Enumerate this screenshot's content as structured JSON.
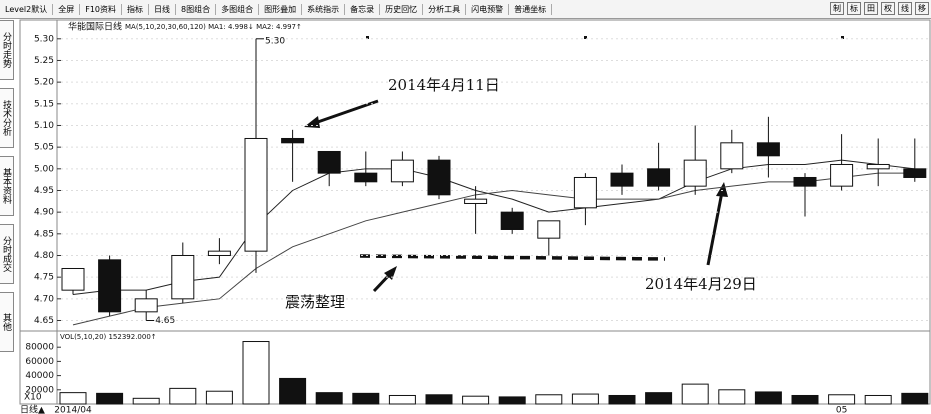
{
  "toolbar": {
    "items": [
      "Level2默认",
      "全屏",
      "F10资料",
      "指标",
      "日线",
      "8图组合",
      "多图组合",
      "图形叠加",
      "系统指示",
      "备忘录",
      "历史回忆",
      "分析工具",
      "闪电预警",
      "普通坐标"
    ],
    "right_items": [
      "制",
      "标",
      "田",
      "权",
      "线",
      "移"
    ]
  },
  "side_tabs": [
    "分时走势",
    "技术分析",
    "基本资料",
    "分时成交",
    "其他"
  ],
  "chart_data": [
    {
      "type": "candlestick",
      "title": "华能国际日线",
      "subtitle": "MA(5,10,20,30,60,120)  MA1: 4.998↓  MA2: 4.997↑",
      "categories": [
        "2014/04",
        null,
        null,
        null,
        null,
        null,
        null,
        null,
        null,
        null,
        null,
        null,
        null,
        null,
        null,
        null,
        null,
        null,
        null,
        null,
        null,
        "05",
        null,
        null
      ],
      "open": [
        4.72,
        4.79,
        4.67,
        4.7,
        4.8,
        4.81,
        5.07,
        5.04,
        4.99,
        4.97,
        5.02,
        4.92,
        4.9,
        4.84,
        4.91,
        4.99,
        5.0,
        4.96,
        5.0,
        5.06,
        4.98,
        4.96,
        5.0,
        5.0
      ],
      "high": [
        4.77,
        4.8,
        4.72,
        4.83,
        4.84,
        5.3,
        5.09,
        5.04,
        5.04,
        5.04,
        5.03,
        4.96,
        4.91,
        4.88,
        4.99,
        5.01,
        5.06,
        5.1,
        5.09,
        5.12,
        4.99,
        5.08,
        5.07,
        5.07
      ],
      "low": [
        4.71,
        4.66,
        4.65,
        4.69,
        4.78,
        4.76,
        4.97,
        4.96,
        4.96,
        4.96,
        4.93,
        4.85,
        4.85,
        4.8,
        4.87,
        4.94,
        4.95,
        4.94,
        4.99,
        4.98,
        4.89,
        4.95,
        4.96,
        4.97
      ],
      "close": [
        4.77,
        4.67,
        4.7,
        4.8,
        4.81,
        5.07,
        5.06,
        4.99,
        4.97,
        5.02,
        4.94,
        4.93,
        4.86,
        4.88,
        4.98,
        4.96,
        4.96,
        5.02,
        5.06,
        5.03,
        4.96,
        5.01,
        5.01,
        4.98
      ],
      "ma_lines": [
        {
          "color": "#222222",
          "values": [
            4.71,
            4.72,
            4.72,
            4.74,
            4.75,
            4.87,
            4.95,
            4.99,
            5.0,
            5.0,
            4.98,
            4.95,
            4.93,
            4.9,
            4.91,
            4.92,
            4.93,
            4.97,
            5.0,
            5.01,
            5.01,
            5.02,
            5.01,
            5.0
          ]
        },
        {
          "color": "#444444",
          "values": [
            4.64,
            4.66,
            4.68,
            4.69,
            4.7,
            4.77,
            4.82,
            4.85,
            4.88,
            4.9,
            4.92,
            4.94,
            4.95,
            4.94,
            4.93,
            4.93,
            4.93,
            4.95,
            4.96,
            4.97,
            4.97,
            4.98,
            4.99,
            4.99
          ]
        }
      ],
      "up_color": "#ffffff",
      "down_color": "#111111",
      "ylim": [
        4.635,
        5.318
      ],
      "yticks": [
        4.65,
        {
          "value": 4.7,
          "label": "4.70"
        },
        4.75,
        {
          "value": 4.8,
          "label": "4.80"
        },
        4.85,
        {
          "value": 4.9,
          "label": "4.90"
        },
        4.95,
        {
          "value": 5.0,
          "label": "5.00"
        },
        5.05,
        {
          "value": 5.1,
          "label": "5.10"
        },
        5.15,
        {
          "value": 5.2,
          "label": "5.20"
        },
        5.25,
        {
          "value": 5.3,
          "label": "5.30"
        }
      ],
      "extreme_labels": [
        {
          "value": 5.3,
          "label": "5.30"
        },
        {
          "value": 4.65,
          "label": "4.65"
        }
      ],
      "annotations": [
        "2014年4月11日",
        "2014年4月29日",
        "震荡整理"
      ]
    },
    {
      "type": "bar",
      "title": "VOL(5,10,20) 152392.000↑",
      "scale_label": "X10",
      "values": [
        16000,
        15000,
        8000,
        22000,
        18000,
        88000,
        36000,
        16000,
        15000,
        12000,
        13000,
        11000,
        10000,
        13000,
        14000,
        12000,
        16000,
        28000,
        20000,
        17000,
        12000,
        13000,
        12000,
        15000
      ],
      "ylim": [
        0,
        100000
      ],
      "yticks": [
        20000,
        40000,
        60000,
        80000
      ]
    }
  ],
  "footer": {
    "label": "日线▲"
  }
}
